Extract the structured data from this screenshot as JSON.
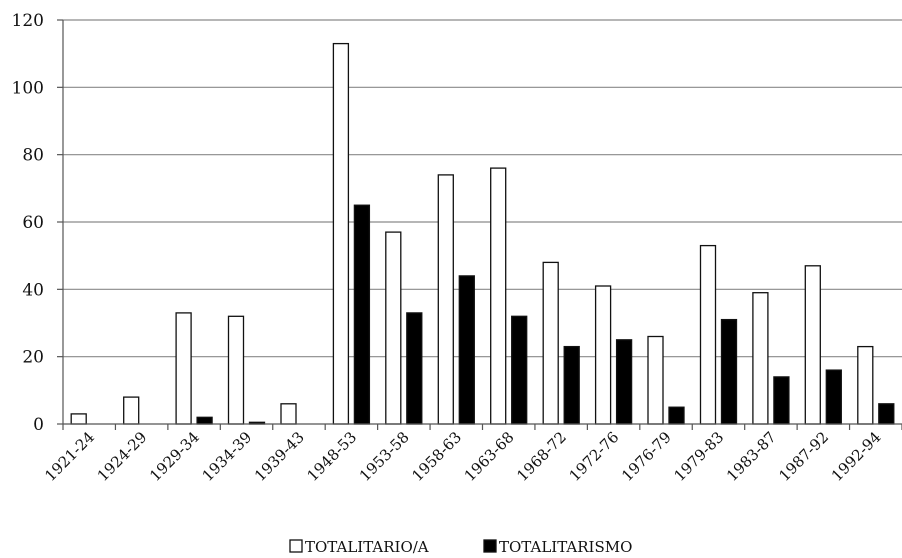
{
  "chart_data": {
    "type": "bar",
    "title": "",
    "xlabel": "",
    "ylabel": "",
    "ylim": [
      0,
      120
    ],
    "yticks": [
      0,
      20,
      40,
      60,
      80,
      100,
      120
    ],
    "grid": true,
    "legend_position": "bottom",
    "categories": [
      "1921-24",
      "1924-29",
      "1929-34",
      "1934-39",
      "1939-43",
      "1948-53",
      "1953-58",
      "1958-63",
      "1963-68",
      "1968-72",
      "1972-76",
      "1976-79",
      "1979-83",
      "1983-87",
      "1987-92",
      "1992-94"
    ],
    "series": [
      {
        "name": "TOTALITARIO/A",
        "color": "#ffffff",
        "values": [
          3,
          8,
          33,
          32,
          6,
          113,
          57,
          74,
          76,
          48,
          41,
          26,
          53,
          39,
          47,
          23
        ]
      },
      {
        "name": "TOTALITARISMO",
        "color": "#000000",
        "values": [
          0,
          0,
          2,
          0.5,
          0,
          65,
          33,
          44,
          32,
          23,
          25,
          5,
          31,
          14,
          16,
          6
        ]
      }
    ]
  }
}
